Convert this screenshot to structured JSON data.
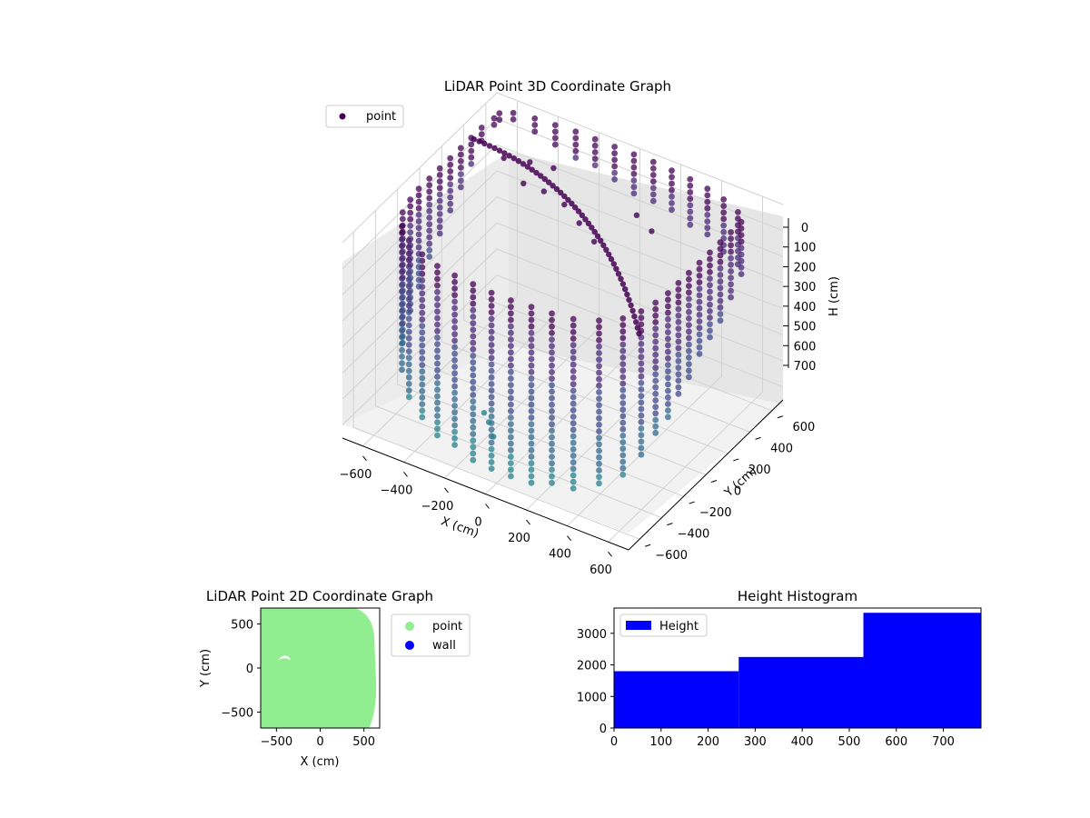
{
  "chart_data": [
    {
      "type": "scatter",
      "title": "LiDAR Point 3D Coordinate Graph",
      "xlabel": "X (cm)",
      "ylabel": "Y (cm)",
      "zlabel": "H (cm)",
      "xlim": [
        -700,
        700
      ],
      "ylim": [
        -700,
        700
      ],
      "zlim": [
        0,
        750
      ],
      "z_inverted": true,
      "x_ticks": [
        -600,
        -400,
        -200,
        0,
        200,
        400,
        600
      ],
      "y_ticks": [
        -600,
        -400,
        -200,
        0,
        200,
        400,
        600
      ],
      "z_ticks": [
        0,
        100,
        200,
        300,
        400,
        500,
        600,
        700
      ],
      "grid": true,
      "legend": {
        "position": "top-left",
        "entries": [
          "point"
        ]
      },
      "colormap": [
        "#440154",
        "#482878",
        "#3e4a89",
        "#31688e",
        "#26828e",
        "#1f9e89",
        "#35b779",
        "#6ece58",
        "#b5de2b"
      ],
      "marker_color_legend": "#440154",
      "series": [
        {
          "name": "point",
          "description_values": "ring of wall points around the room plus ceiling arcs",
          "points": [
            [
              -650,
              600,
              30
            ],
            [
              -600,
              640,
              40
            ],
            [
              -500,
              660,
              60
            ],
            [
              -400,
              670,
              80
            ],
            [
              -300,
              680,
              100
            ],
            [
              -200,
              680,
              120
            ],
            [
              -100,
              680,
              140
            ],
            [
              0,
              680,
              150
            ],
            [
              100,
              680,
              160
            ],
            [
              200,
              670,
              170
            ],
            [
              300,
              660,
              180
            ],
            [
              400,
              640,
              190
            ],
            [
              500,
              610,
              200
            ],
            [
              600,
              560,
              210
            ],
            [
              650,
              500,
              220
            ],
            [
              650,
              400,
              260
            ],
            [
              650,
              300,
              300
            ],
            [
              650,
              200,
              330
            ],
            [
              650,
              100,
              360
            ],
            [
              650,
              0,
              400
            ],
            [
              650,
              -100,
              440
            ],
            [
              650,
              -200,
              480
            ],
            [
              640,
              -300,
              520
            ],
            [
              620,
              -400,
              560
            ],
            [
              580,
              -500,
              600
            ],
            [
              500,
              -580,
              640
            ],
            [
              400,
              -640,
              660
            ],
            [
              300,
              -660,
              670
            ],
            [
              200,
              -670,
              680
            ],
            [
              100,
              -680,
              690
            ],
            [
              0,
              -680,
              690
            ],
            [
              -100,
              -670,
              680
            ],
            [
              -200,
              -660,
              670
            ],
            [
              -300,
              -640,
              660
            ],
            [
              -400,
              -600,
              640
            ],
            [
              -500,
              -540,
              600
            ],
            [
              -580,
              -460,
              560
            ],
            [
              -630,
              -360,
              500
            ],
            [
              -650,
              -250,
              440
            ],
            [
              -660,
              -150,
              380
            ],
            [
              -660,
              -50,
              320
            ],
            [
              -660,
              50,
              260
            ],
            [
              -660,
              150,
              200
            ],
            [
              -660,
              250,
              150
            ],
            [
              -660,
              350,
              100
            ],
            [
              -660,
              450,
              70
            ],
            [
              -650,
              550,
              40
            ],
            [
              -300,
              200,
              20
            ],
            [
              -200,
              200,
              20
            ],
            [
              -100,
              200,
              40
            ],
            [
              0,
              150,
              60
            ],
            [
              100,
              100,
              80
            ],
            [
              -450,
              300,
              10
            ],
            [
              -350,
              350,
              15
            ],
            [
              -250,
              380,
              20
            ],
            [
              200,
              300,
              30
            ],
            [
              300,
              250,
              40
            ],
            [
              -200,
              -300,
              700
            ],
            [
              -150,
              -350,
              720
            ],
            [
              -250,
              -250,
              700
            ]
          ]
        }
      ]
    },
    {
      "type": "scatter",
      "title": "LiDAR Point 2D Coordinate Graph",
      "xlabel": "X (cm)",
      "ylabel": "Y (cm)",
      "xlim": [
        -680,
        680
      ],
      "ylim": [
        -680,
        680
      ],
      "x_ticks": [
        -500,
        0,
        500
      ],
      "y_ticks": [
        -500,
        0,
        500
      ],
      "grid": false,
      "legend": {
        "position": "right-outside",
        "entries": [
          "point",
          "wall"
        ]
      },
      "series": [
        {
          "name": "point",
          "color": "#90ee90",
          "description_values": "dense cloud filling room footprint"
        },
        {
          "name": "wall",
          "color": "#0000ff",
          "points": []
        }
      ]
    },
    {
      "type": "bar",
      "title": "Height Histogram",
      "xlabel": "",
      "ylabel": "",
      "xlim": [
        0,
        780
      ],
      "ylim": [
        0,
        3800
      ],
      "x_ticks": [
        0,
        100,
        200,
        300,
        400,
        500,
        600,
        700
      ],
      "y_ticks": [
        0,
        1000,
        2000,
        3000
      ],
      "legend": {
        "position": "top-left",
        "entries": [
          "Height"
        ]
      },
      "series": [
        {
          "name": "Height",
          "color": "#0000ff",
          "bins": [
            {
              "from": 0,
              "to": 265,
              "count": 1800
            },
            {
              "from": 265,
              "to": 530,
              "count": 2250
            },
            {
              "from": 530,
              "to": 780,
              "count": 3650
            }
          ]
        }
      ]
    }
  ]
}
